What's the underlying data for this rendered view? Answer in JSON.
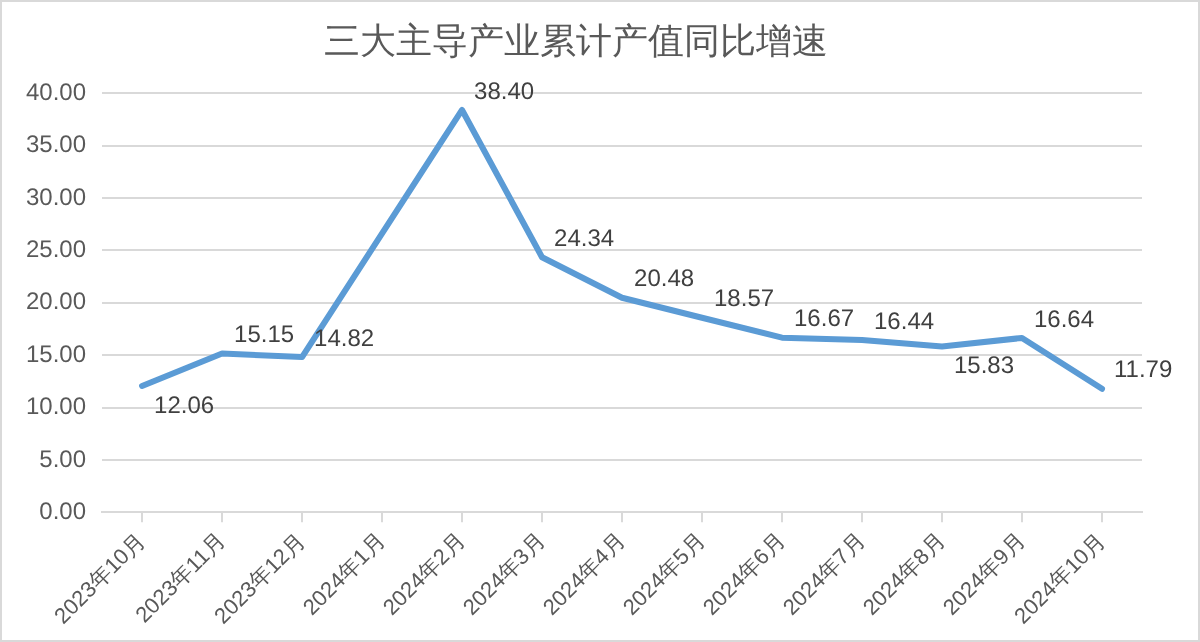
{
  "chart_data": {
    "type": "line",
    "title": "三大主导产业累计产值同比增速",
    "categories": [
      "2023年10月",
      "2023年11月",
      "2023年12月",
      "2024年1月",
      "2024年2月",
      "2024年3月",
      "2024年4月",
      "2024年5月",
      "2024年6月",
      "2024年7月",
      "2024年8月",
      "2024年9月",
      "2024年10月"
    ],
    "series": [
      {
        "color": "#5b9bd5",
        "values": [
          12.06,
          15.15,
          14.82,
          null,
          38.4,
          24.34,
          20.48,
          18.57,
          16.67,
          16.44,
          15.83,
          16.64,
          11.79
        ]
      }
    ],
    "ylim": [
      0,
      40
    ],
    "yticks": [
      {
        "value": 0,
        "label": "0.00"
      },
      {
        "value": 5,
        "label": "5.00"
      },
      {
        "value": 10,
        "label": "10.00"
      },
      {
        "value": 15,
        "label": "15.00"
      },
      {
        "value": 20,
        "label": "20.00"
      },
      {
        "value": 25,
        "label": "25.00"
      },
      {
        "value": 30,
        "label": "30.00"
      },
      {
        "value": 35,
        "label": "35.00"
      },
      {
        "value": 40,
        "label": "40.00"
      }
    ],
    "value_labels": [
      "12.06",
      "15.15",
      "14.82",
      null,
      "38.40",
      "24.34",
      "20.48",
      "18.57",
      "16.67",
      "16.44",
      "15.83",
      "16.64",
      "11.79"
    ],
    "grid": "y",
    "legend": false,
    "marker": "none",
    "line_style": "solid"
  }
}
